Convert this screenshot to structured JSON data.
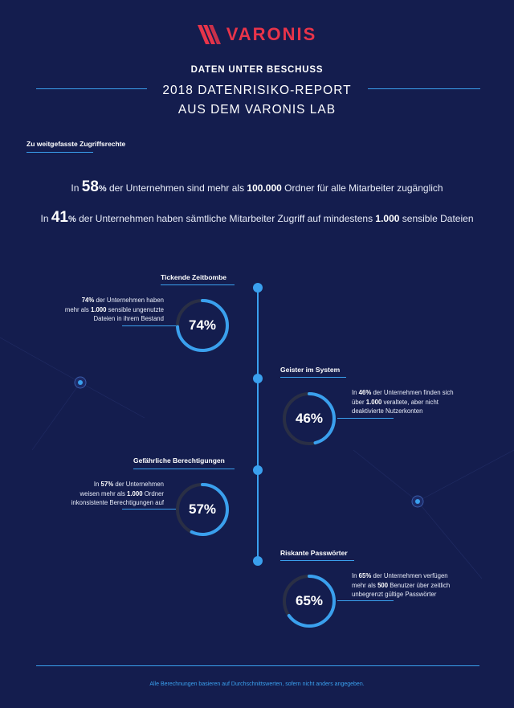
{
  "brand": {
    "name": "VARONIS",
    "accent": "#e8344a"
  },
  "header": {
    "kicker": "DATEN UNTER BESCHUSS",
    "title_line1": "2018 DATENRISIKO-REPORT",
    "title_line2": "AUS DEM VARONIS LAB"
  },
  "section": {
    "label": "Zu weitgefasste Zugriffsrechte"
  },
  "stats": [
    {
      "pre": "In ",
      "big": "58",
      "pct": "%",
      "mid": " der Unternehmen sind mehr als ",
      "bold": "100.000",
      "post": " Ordner für alle Mitarbeiter zugänglich"
    },
    {
      "pre": "In ",
      "big": "41",
      "pct": "%",
      "mid": " der Unternehmen haben sämtliche Mitarbeiter Zugriff auf mindestens ",
      "bold": "1.000",
      "post": " sensible Dateien"
    }
  ],
  "cards": [
    {
      "title": "Tickende Zeitbombe",
      "pct_label": "74%",
      "value": 74,
      "t1b": "74%",
      "t1": " der Unternehmen haben",
      "t2a": "mehr als ",
      "t2b": "1.000",
      "t2c": " sensible ungenutzte",
      "t3": "Dateien in ihrem Bestand"
    },
    {
      "title": "Geister im System",
      "pct_label": "46%",
      "value": 46,
      "t1a": "In ",
      "t1b": "46%",
      "t1": " der Unternehmen finden sich",
      "t2a": "über ",
      "t2b": "1.000",
      "t2c": " veraltete, aber nicht",
      "t3": "deaktivierte Nutzerkonten"
    },
    {
      "title": "Gefährliche Berechtigungen",
      "pct_label": "57%",
      "value": 57,
      "t1a": "In ",
      "t1b": "57%",
      "t1": " der Unternehmen",
      "t2a": "weisen mehr als ",
      "t2b": "1.000",
      "t2c": " Ordner",
      "t3": "inkonsistente Berechtigungen auf"
    },
    {
      "title": "Riskante Passwörter",
      "pct_label": "65%",
      "value": 65,
      "t1a": "In ",
      "t1b": "65%",
      "t1": " der Unternehmen verfügen",
      "t2a": "mehr als ",
      "t2b": "500",
      "t2c": " Benutzer über zeitlich",
      "t3": "unbegrenzt gültige Passwörter"
    }
  ],
  "colors": {
    "accent": "#3aa0ee",
    "background": "#141d4e",
    "ring_track": "#2a2f45"
  },
  "footer": {
    "note": "Alle Berechnungen basieren auf Durchschnittswerten, sofern nicht anders angegeben."
  }
}
